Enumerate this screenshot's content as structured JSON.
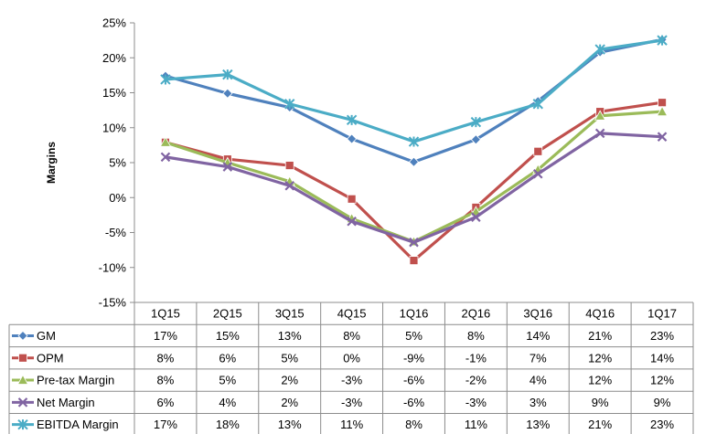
{
  "chart_data": {
    "type": "line",
    "title": "",
    "xlabel": "",
    "ylabel": "Margins",
    "ylim": [
      -15,
      25
    ],
    "yticks": [
      -15,
      -10,
      -5,
      0,
      5,
      10,
      15,
      20,
      25
    ],
    "ytick_suffix": "%",
    "grid": false,
    "legend": "data-table-below",
    "categories": [
      "1Q15",
      "2Q15",
      "3Q15",
      "4Q15",
      "1Q16",
      "2Q16",
      "3Q16",
      "4Q16",
      "1Q17"
    ],
    "series": [
      {
        "name": "GM",
        "color": "#4F81BD",
        "marker": "diamond",
        "values": [
          17.4,
          14.9,
          12.9,
          8.4,
          5.1,
          8.3,
          13.8,
          20.8,
          22.6
        ],
        "labels": [
          "17%",
          "15%",
          "13%",
          "8%",
          "5%",
          "8%",
          "14%",
          "21%",
          "23%"
        ]
      },
      {
        "name": "OPM",
        "color": "#C0504D",
        "marker": "square",
        "values": [
          7.9,
          5.5,
          4.6,
          -0.2,
          -9.0,
          -1.4,
          6.6,
          12.3,
          13.6
        ],
        "labels": [
          "8%",
          "6%",
          "5%",
          "0%",
          "-9%",
          "-1%",
          "7%",
          "12%",
          "14%"
        ]
      },
      {
        "name": "Pre-tax Margin",
        "color": "#9BBB59",
        "marker": "triangle",
        "values": [
          7.9,
          5.0,
          2.3,
          -3.0,
          -6.3,
          -2.0,
          4.0,
          11.7,
          12.3
        ],
        "labels": [
          "8%",
          "5%",
          "2%",
          "-3%",
          "-6%",
          "-2%",
          "4%",
          "12%",
          "12%"
        ]
      },
      {
        "name": "Net Margin",
        "color": "#8064A2",
        "marker": "x",
        "values": [
          5.8,
          4.4,
          1.7,
          -3.4,
          -6.4,
          -2.8,
          3.4,
          9.2,
          8.7
        ],
        "labels": [
          "6%",
          "4%",
          "2%",
          "-3%",
          "-6%",
          "-3%",
          "3%",
          "9%",
          "9%"
        ]
      },
      {
        "name": "EBITDA Margin",
        "color": "#4BACC6",
        "marker": "star",
        "values": [
          16.9,
          17.6,
          13.4,
          11.1,
          8.0,
          10.8,
          13.4,
          21.2,
          22.5
        ],
        "labels": [
          "17%",
          "18%",
          "13%",
          "11%",
          "8%",
          "11%",
          "13%",
          "21%",
          "23%"
        ]
      }
    ]
  }
}
